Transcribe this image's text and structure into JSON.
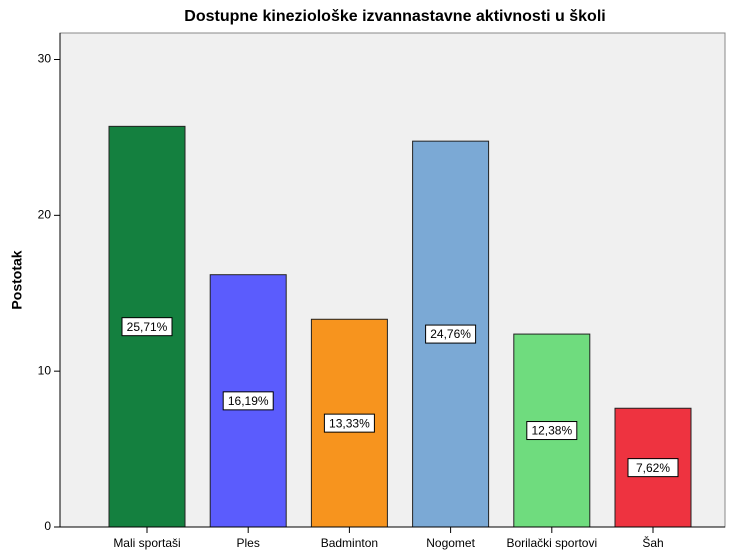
{
  "chart_data": {
    "type": "bar",
    "title": "Dostupne kineziološke izvannastavne aktivnosti u školi",
    "y_label": "Postotak",
    "categories": [
      "Mali sportaši",
      "Ples",
      "Badminton",
      "Nogomet",
      "Borilački sportovi",
      "Šah"
    ],
    "values": [
      25.71,
      16.19,
      13.33,
      24.76,
      12.38,
      7.62
    ],
    "value_labels": [
      "25,71%",
      "16,19%",
      "13,33%",
      "24,76%",
      "12,38%",
      "7,62%"
    ],
    "colors": [
      "#14803f",
      "#5b5cfd",
      "#f7941e",
      "#7ba9d5",
      "#6fdc7e",
      "#ee3340"
    ],
    "ylim": [
      0,
      31.7
    ],
    "yticks": [
      0,
      10,
      20,
      30
    ],
    "grid": false
  }
}
